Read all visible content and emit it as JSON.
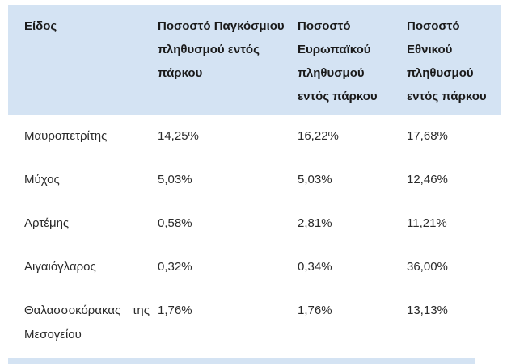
{
  "colors": {
    "header_background": "#d4e3f3",
    "body_text": "#2a2a2a",
    "header_text": "#1a1a1a",
    "page_background": "#ffffff"
  },
  "table": {
    "columns": [
      "Είδος",
      "Ποσοστό Παγκόσμιου πληθυσμού εντός πάρκου",
      "Ποσοστό Ευρωπαϊκού πληθυσμού εντός πάρκου",
      "Ποσοστό Εθνικού πληθυσμού εντός πάρκου"
    ],
    "rows": [
      [
        "Μαυροπετρίτης",
        "14,25%",
        "16,22%",
        "17,68%"
      ],
      [
        "Μύχος",
        "5,03%",
        "5,03%",
        "12,46%"
      ],
      [
        "Αρτέμης",
        "0,58%",
        "2,81%",
        "11,21%"
      ],
      [
        "Αιγαιόγλαρος",
        "0,32%",
        "0,34%",
        "36,00%"
      ],
      [
        "Θαλασσοκόρακας της Μεσογείου",
        "1,76%",
        "1,76%",
        "13,13%"
      ]
    ]
  }
}
